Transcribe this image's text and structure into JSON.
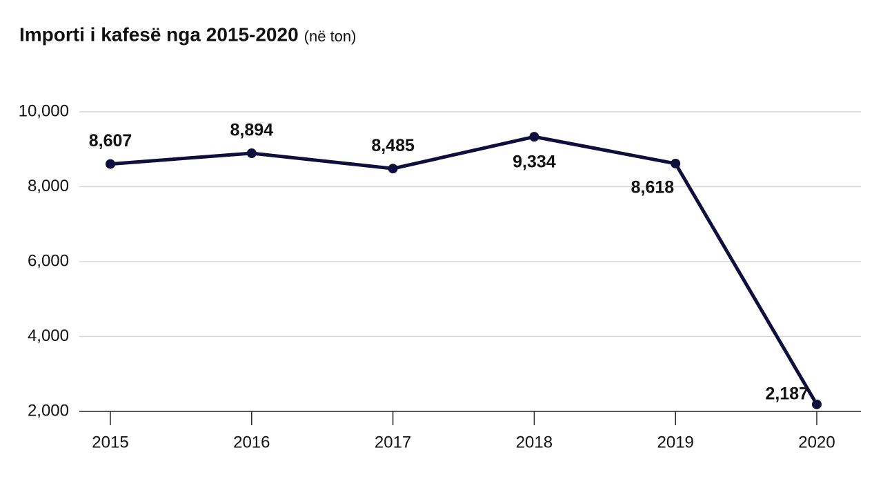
{
  "chart_data": {
    "type": "line",
    "title": "Importi i kafesë nga 2015-2020",
    "subtitle": "(në ton)",
    "categories": [
      "2015",
      "2016",
      "2017",
      "2018",
      "2019",
      "2020"
    ],
    "series": [
      {
        "name": "Importi",
        "color": "#0e0f3d",
        "values": [
          8607,
          8894,
          8485,
          9334,
          8618,
          2187
        ],
        "value_labels": [
          "8,607",
          "8,894",
          "8,485",
          "9,334",
          "8,618",
          "2,187"
        ]
      }
    ],
    "ylim": [
      2000,
      10000
    ],
    "yticks": [
      {
        "value": 2000,
        "label": "2,000"
      },
      {
        "value": 4000,
        "label": "4,000"
      },
      {
        "value": 6000,
        "label": "6,000"
      },
      {
        "value": 8000,
        "label": "8,000"
      },
      {
        "value": 10000,
        "label": "10,000"
      }
    ],
    "grid": true
  }
}
